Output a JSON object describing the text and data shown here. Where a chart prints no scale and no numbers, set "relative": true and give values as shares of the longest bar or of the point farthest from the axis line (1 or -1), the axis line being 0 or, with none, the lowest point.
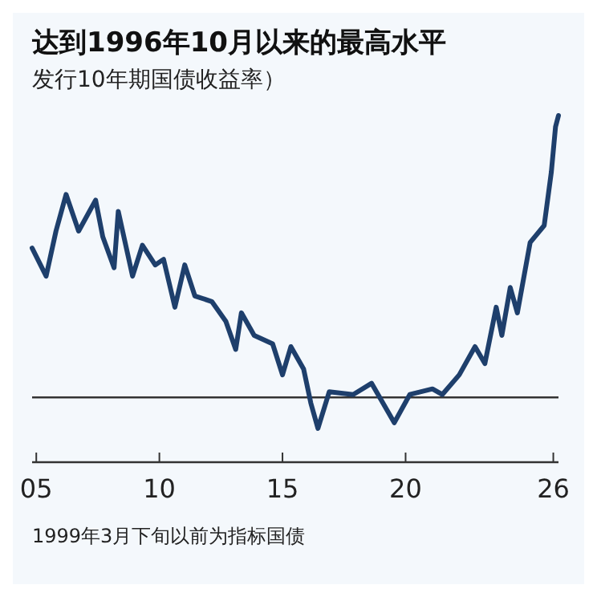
{
  "chart_data": {
    "type": "line",
    "title": "达到1996年10月以来的最高水平",
    "subtitle": "发行10年期国债收益率）",
    "relative": true,
    "x": [
      2004.83,
      2005.4,
      2005.8,
      2006.21,
      2006.72,
      2007.41,
      2007.7,
      2008.16,
      2008.33,
      2008.91,
      2009.31,
      2009.83,
      2010.17,
      2010.63,
      2011.03,
      2011.44,
      2012.13,
      2012.7,
      2013.1,
      2013.33,
      2013.85,
      2014.6,
      2015.0,
      2015.34,
      2015.86,
      2016.15,
      2016.44,
      2016.9,
      2017.87,
      2018.62,
      2019.08,
      2019.54,
      2020.17,
      2021.09,
      2021.49,
      2022.18,
      2022.82,
      2023.22,
      2023.68,
      2023.91,
      2024.25,
      2024.54,
      2025.06,
      2025.63,
      2025.92,
      2026.09,
      2026.21
    ],
    "series": [
      {
        "color": "#1e3f6c",
        "values": [
          0.53,
          0.43,
          0.59,
          0.72,
          0.59,
          0.7,
          0.57,
          0.46,
          0.66,
          0.43,
          0.54,
          0.47,
          0.49,
          0.32,
          0.47,
          0.36,
          0.34,
          0.27,
          0.17,
          0.3,
          0.22,
          0.19,
          0.08,
          0.18,
          0.1,
          -0.02,
          -0.11,
          0.02,
          0.01,
          0.05,
          -0.02,
          -0.09,
          0.01,
          0.03,
          0.01,
          0.08,
          0.18,
          0.12,
          0.32,
          0.22,
          0.39,
          0.3,
          0.55,
          0.61,
          0.8,
          0.96,
          1.0
        ]
      }
    ],
    "xlim": [
      2004.83,
      2026.21
    ],
    "xticks": [
      {
        "value": 2005,
        "label": "05"
      },
      {
        "value": 2010,
        "label": "10"
      },
      {
        "value": 2015,
        "label": "15"
      },
      {
        "value": 2020,
        "label": "20"
      },
      {
        "value": 2026,
        "label": "26"
      }
    ],
    "ref_lines": [
      {
        "axis": "y",
        "value": 0,
        "color": "#333333"
      }
    ],
    "annotations": [
      "1999年3月下旬以前为指标国债"
    ],
    "line_style": "solid",
    "grid": false
  }
}
